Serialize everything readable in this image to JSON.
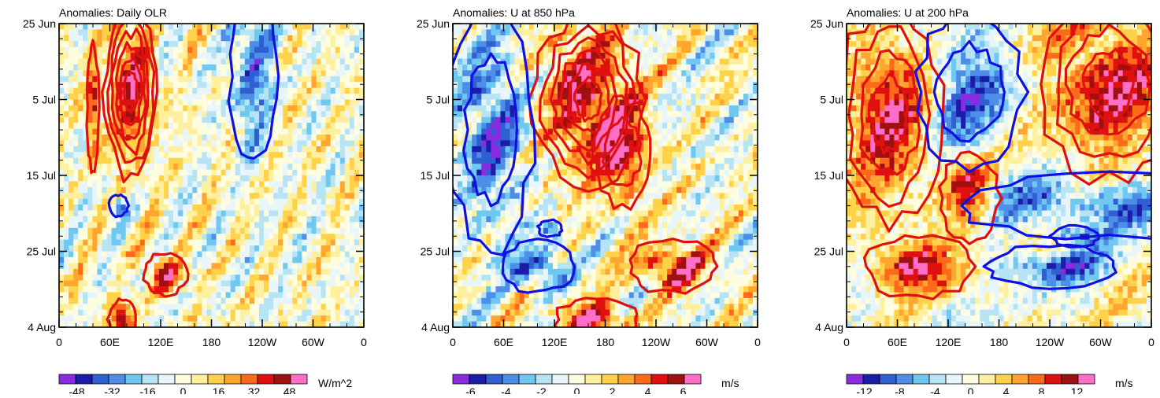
{
  "chart_data": [
    {
      "type": "heatmap",
      "title": "Anomalies: Daily OLR",
      "x_ticks": [
        "0",
        "60E",
        "120E",
        "180",
        "120W",
        "60W",
        "0"
      ],
      "y_ticks": [
        "25 Jun",
        "5 Jul",
        "15 Jul",
        "25 Jul",
        "4 Aug"
      ],
      "colorbar_labels": [
        "-48",
        "-32",
        "-16",
        "0",
        "16",
        "32",
        "48"
      ],
      "colorbar_range": [
        -56,
        56
      ],
      "units": "W/m^2",
      "seed": 3,
      "red_contours": [
        {
          "lon": 85,
          "day": 9,
          "rx": 22,
          "ry": 8,
          "levels": 6
        },
        {
          "lon": 40,
          "day": 11,
          "rx": 5,
          "ry": 6,
          "levels": 1
        },
        {
          "lon": 125,
          "day": 33,
          "rx": 18,
          "ry": 2,
          "levels": 1
        },
        {
          "lon": 75,
          "day": 39,
          "rx": 12,
          "ry": 2,
          "levels": 1
        }
      ],
      "blue_contours": [
        {
          "lon": 230,
          "day": 7,
          "rx": 20,
          "ry": 8,
          "levels": 1
        },
        {
          "lon": 70,
          "day": 24,
          "rx": 8,
          "ry": 1,
          "levels": 1
        }
      ]
    },
    {
      "type": "heatmap",
      "title": "Anomalies: U at 850 hPa",
      "x_ticks": [
        "0",
        "60E",
        "120E",
        "180",
        "120W",
        "60W",
        "0"
      ],
      "y_ticks": [
        "25 Jun",
        "5 Jul",
        "15 Jul",
        "25 Jul",
        "4 Aug"
      ],
      "colorbar_labels": [
        "-6",
        "-4",
        "-2",
        "0",
        "2",
        "4",
        "6"
      ],
      "colorbar_range": [
        -7,
        7
      ],
      "units": "m/s",
      "seed": 7,
      "red_contours": [
        {
          "lon": 160,
          "day": 10,
          "rx": 45,
          "ry": 8,
          "levels": 6
        },
        {
          "lon": 200,
          "day": 17,
          "rx": 25,
          "ry": 5,
          "levels": 2
        },
        {
          "lon": 260,
          "day": 32,
          "rx": 38,
          "ry": 2.5,
          "levels": 1
        },
        {
          "lon": 170,
          "day": 39,
          "rx": 35,
          "ry": 2,
          "levels": 1
        }
      ],
      "blue_contours": [
        {
          "lon": 45,
          "day": 14,
          "rx": 35,
          "ry": 11,
          "levels": 2
        },
        {
          "lon": 100,
          "day": 32,
          "rx": 30,
          "ry": 2.5,
          "levels": 1
        },
        {
          "lon": 115,
          "day": 27,
          "rx": 10,
          "ry": 0.8,
          "levels": 1
        }
      ]
    },
    {
      "type": "heatmap",
      "title": "Anomalies: U at 200 hPa",
      "x_ticks": [
        "0",
        "60E",
        "120E",
        "180",
        "120W",
        "60W",
        "0"
      ],
      "y_ticks": [
        "25 Jun",
        "5 Jul",
        "15 Jul",
        "25 Jul",
        "4 Aug"
      ],
      "colorbar_labels": [
        "-12",
        "-8",
        "-4",
        "0",
        "4",
        "8",
        "12"
      ],
      "colorbar_range": [
        -14,
        14
      ],
      "units": "m/s",
      "seed": 11,
      "red_contours": [
        {
          "lon": 50,
          "day": 12,
          "rx": 45,
          "ry": 10,
          "levels": 4
        },
        {
          "lon": 310,
          "day": 8,
          "rx": 60,
          "ry": 9,
          "levels": 4
        },
        {
          "lon": 145,
          "day": 23,
          "rx": 25,
          "ry": 4,
          "levels": 1
        },
        {
          "lon": 85,
          "day": 32,
          "rx": 45,
          "ry": 3,
          "levels": 1
        }
      ],
      "blue_contours": [
        {
          "lon": 145,
          "day": 9,
          "rx": 45,
          "ry": 7,
          "levels": 2
        },
        {
          "lon": 310,
          "day": 24,
          "rx": 130,
          "ry": 3,
          "levels": 1
        },
        {
          "lon": 240,
          "day": 32,
          "rx": 55,
          "ry": 2,
          "levels": 1
        },
        {
          "lon": 270,
          "day": 28,
          "rx": 20,
          "ry": 1,
          "levels": 1
        }
      ]
    }
  ],
  "palette": [
    "#8a2be2",
    "#1c1caa",
    "#2f5fd0",
    "#4d8ee8",
    "#6fc8f0",
    "#b7e4f5",
    "#e8f6fb",
    "#fffde0",
    "#fff0a0",
    "#ffd24a",
    "#ffa530",
    "#ff6a1a",
    "#e01010",
    "#a01010",
    "#ff6ec7"
  ],
  "contour_colors": {
    "positive": "#e01010",
    "negative": "#1010e0"
  }
}
